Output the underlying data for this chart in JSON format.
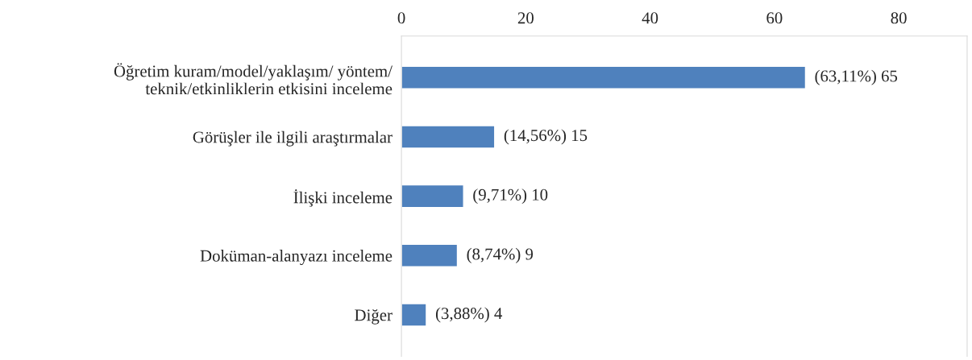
{
  "chart_data": {
    "type": "bar",
    "orientation": "horizontal",
    "categories": [
      "Öğretim kuram/model/yaklaşım/ yöntem/\nteknik/etkinliklerin etkisini inceleme",
      "Görüşler ile ilgili araştırmalar",
      "İlişki inceleme",
      "Doküman-alanyazı inceleme",
      "Diğer"
    ],
    "values": [
      65,
      15,
      10,
      9,
      4
    ],
    "value_labels": [
      "(63,11%) 65",
      "(14,56%) 15",
      "(9,71%) 10",
      "(8,74%) 9",
      "(3,88%) 4"
    ],
    "color": "#4f81bd",
    "xlim": [
      0,
      91
    ],
    "xticks": [
      0,
      20,
      40,
      60,
      80
    ],
    "grid": false,
    "legend": false
  }
}
